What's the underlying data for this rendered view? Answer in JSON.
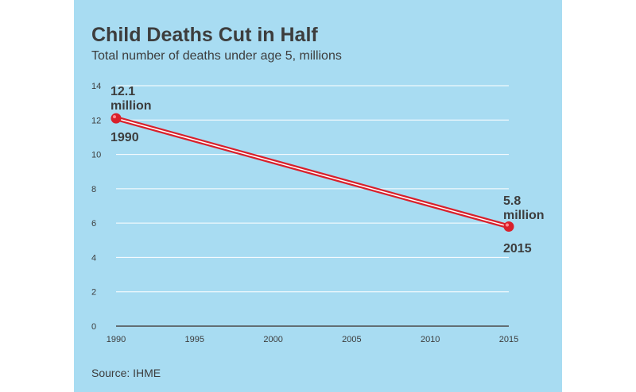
{
  "title": "Child Deaths Cut in Half",
  "subtitle": "Total number of deaths under age 5, millions",
  "source": "Source: IHME",
  "colors": {
    "background": "#a8dcf2",
    "line": "#d9202b",
    "grid": "#ffffff",
    "text": "#3d3d3d"
  },
  "chart_data": {
    "type": "line",
    "title": "Child Deaths Cut in Half",
    "subtitle": "Total number of deaths under age 5, millions",
    "x": [
      1990,
      2015
    ],
    "series": [
      {
        "values": [
          12.1,
          5.8
        ]
      }
    ],
    "xticks": [
      "1990",
      "1995",
      "2000",
      "2005",
      "2010",
      "2015"
    ],
    "yticks": [
      "0",
      "2",
      "4",
      "6",
      "8",
      "10",
      "12",
      "14"
    ],
    "xlim": [
      1990,
      2015
    ],
    "ylim": [
      0,
      14
    ],
    "grid": true,
    "annotations": [
      {
        "value_line1": "12.1",
        "value_line2": "million",
        "year": "1990"
      },
      {
        "value_line1": "5.8",
        "value_line2": "million",
        "year": "2015"
      }
    ]
  }
}
